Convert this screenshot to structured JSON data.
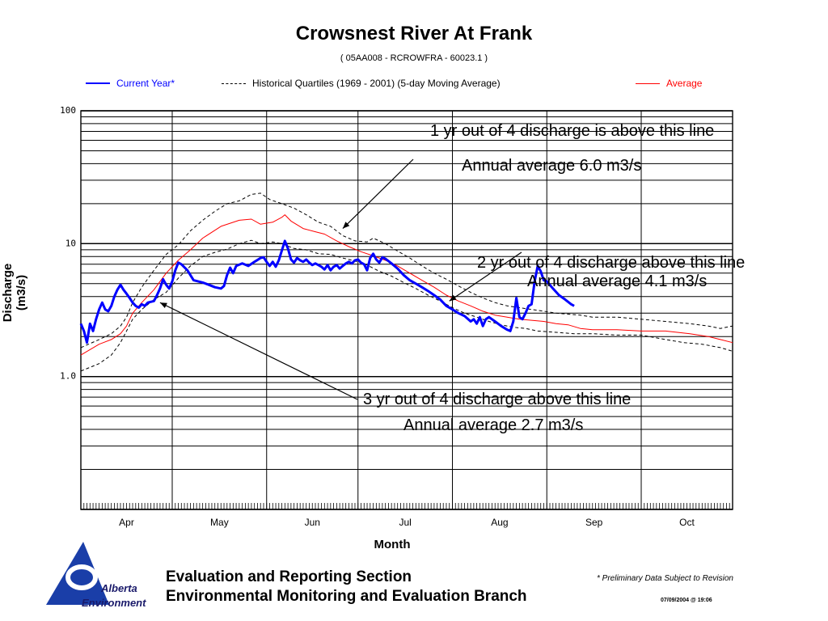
{
  "chart_data": {
    "type": "line",
    "title": "Crowsnest River At Frank",
    "subtitle": "( 05AA008 - RCROWFRA - 60023.1 )",
    "xlabel": "Month",
    "ylabel": "Discharge (m3/s)",
    "y_scale": "log",
    "ylim": [
      0.1,
      100
    ],
    "y_ticks": [
      {
        "value": 100,
        "label": "100"
      },
      {
        "value": 10,
        "label": "10"
      },
      {
        "value": 1,
        "label": "1.0"
      }
    ],
    "x_range_days": [
      0,
      214
    ],
    "x_ticks": [
      "Apr",
      "May",
      "Jun",
      "Jul",
      "Aug",
      "Sep",
      "Oct"
    ],
    "x_tick_positions_days": [
      15,
      45.5,
      76,
      106.5,
      137.5,
      168.5,
      199
    ],
    "month_boundaries_days": [
      30,
      61,
      91,
      122,
      153,
      184
    ],
    "grid": "on",
    "legend": [
      {
        "name": "Current Year*",
        "color": "#0000ff",
        "style": "solid"
      },
      {
        "name": "Historical Quartiles (1969  -  2001)  (5-day Moving Average)",
        "color": "#000000",
        "style": "dashed"
      },
      {
        "name": "Average",
        "color": "#ff0000",
        "style": "solid"
      }
    ],
    "series": [
      {
        "name": "Current Year*",
        "color": "#0000ff",
        "points": [
          [
            0,
            2.5
          ],
          [
            1,
            2.2
          ],
          [
            2,
            1.8
          ],
          [
            3,
            2.5
          ],
          [
            4,
            2.2
          ],
          [
            5,
            2.7
          ],
          [
            6,
            3.2
          ],
          [
            7,
            3.6
          ],
          [
            8,
            3.2
          ],
          [
            9,
            3.1
          ],
          [
            10,
            3.4
          ],
          [
            11,
            4.0
          ],
          [
            12,
            4.5
          ],
          [
            13,
            4.9
          ],
          [
            14,
            4.5
          ],
          [
            15,
            4.2
          ],
          [
            16,
            3.9
          ],
          [
            17,
            3.6
          ],
          [
            18,
            3.4
          ],
          [
            19,
            3.3
          ],
          [
            20,
            3.5
          ],
          [
            21,
            3.4
          ],
          [
            22,
            3.6
          ],
          [
            24,
            3.7
          ],
          [
            25,
            4.1
          ],
          [
            26,
            4.6
          ],
          [
            27,
            5.4
          ],
          [
            28,
            4.9
          ],
          [
            29,
            4.6
          ],
          [
            30,
            5.2
          ],
          [
            31,
            6.3
          ],
          [
            32,
            7.2
          ],
          [
            33,
            7.0
          ],
          [
            35,
            6.3
          ],
          [
            37,
            5.3
          ],
          [
            40,
            5.1
          ],
          [
            42,
            4.9
          ],
          [
            44,
            4.7
          ],
          [
            46,
            4.6
          ],
          [
            47,
            4.8
          ],
          [
            48,
            5.8
          ],
          [
            49,
            6.6
          ],
          [
            50,
            6.0
          ],
          [
            51,
            6.8
          ],
          [
            53,
            7.1
          ],
          [
            55,
            6.8
          ],
          [
            57,
            7.3
          ],
          [
            59,
            7.8
          ],
          [
            60,
            7.9
          ],
          [
            61,
            7.3
          ],
          [
            62,
            6.8
          ],
          [
            63,
            7.3
          ],
          [
            64,
            6.7
          ],
          [
            65,
            7.5
          ],
          [
            66,
            8.9
          ],
          [
            67,
            10.5
          ],
          [
            68,
            9.2
          ],
          [
            69,
            7.6
          ],
          [
            70,
            7.2
          ],
          [
            71,
            7.8
          ],
          [
            72,
            7.5
          ],
          [
            73,
            7.3
          ],
          [
            74,
            7.6
          ],
          [
            75,
            7.2
          ],
          [
            76,
            6.9
          ],
          [
            77,
            7.1
          ],
          [
            78,
            6.9
          ],
          [
            79,
            6.7
          ],
          [
            80,
            6.4
          ],
          [
            81,
            6.9
          ],
          [
            82,
            6.3
          ],
          [
            83,
            6.7
          ],
          [
            84,
            6.9
          ],
          [
            85,
            6.5
          ],
          [
            86,
            6.8
          ],
          [
            87,
            7.1
          ],
          [
            88,
            7.3
          ],
          [
            89,
            7.1
          ],
          [
            90,
            7.5
          ],
          [
            91,
            7.6
          ],
          [
            92,
            7.2
          ],
          [
            93,
            7.0
          ],
          [
            94,
            6.3
          ],
          [
            95,
            7.8
          ],
          [
            96,
            8.4
          ],
          [
            97,
            7.6
          ],
          [
            98,
            7.2
          ],
          [
            99,
            7.9
          ],
          [
            100,
            7.7
          ],
          [
            101,
            7.4
          ],
          [
            102,
            7.1
          ],
          [
            104,
            6.5
          ],
          [
            106,
            5.8
          ],
          [
            108,
            5.3
          ],
          [
            110,
            5.0
          ],
          [
            112,
            4.7
          ],
          [
            114,
            4.4
          ],
          [
            116,
            4.1
          ],
          [
            118,
            3.8
          ],
          [
            120,
            3.4
          ],
          [
            122,
            3.2
          ],
          [
            124,
            3.0
          ],
          [
            126,
            2.85
          ],
          [
            128,
            2.6
          ],
          [
            129,
            2.7
          ],
          [
            130,
            2.5
          ],
          [
            131,
            2.8
          ],
          [
            132,
            2.4
          ],
          [
            133,
            2.7
          ],
          [
            134,
            2.8
          ],
          [
            136,
            2.6
          ],
          [
            138,
            2.4
          ],
          [
            140,
            2.25
          ],
          [
            141,
            2.2
          ],
          [
            142,
            2.6
          ],
          [
            143,
            3.9
          ],
          [
            144,
            2.8
          ],
          [
            145,
            2.7
          ],
          [
            146,
            3.0
          ],
          [
            147,
            3.4
          ],
          [
            148,
            3.5
          ],
          [
            149,
            5.2
          ],
          [
            150,
            6.8
          ],
          [
            151,
            6.2
          ],
          [
            152,
            5.3
          ],
          [
            153,
            5.2
          ],
          [
            155,
            4.6
          ],
          [
            157,
            4.1
          ],
          [
            159,
            3.8
          ],
          [
            161,
            3.5
          ],
          [
            162,
            3.4
          ]
        ]
      },
      {
        "name": "Average",
        "color": "#ff0000",
        "points": [
          [
            0,
            1.45
          ],
          [
            6,
            1.75
          ],
          [
            10,
            1.9
          ],
          [
            13,
            2.1
          ],
          [
            15,
            2.4
          ],
          [
            17,
            3.0
          ],
          [
            20,
            3.6
          ],
          [
            24,
            4.5
          ],
          [
            28,
            6.0
          ],
          [
            32,
            7.5
          ],
          [
            36,
            9.0
          ],
          [
            40,
            11.0
          ],
          [
            46,
            13.5
          ],
          [
            52,
            15.0
          ],
          [
            56,
            15.3
          ],
          [
            59,
            14.0
          ],
          [
            63,
            14.5
          ],
          [
            66,
            15.8
          ],
          [
            67,
            16.5
          ],
          [
            69,
            14.8
          ],
          [
            73,
            13.0
          ],
          [
            77,
            12.3
          ],
          [
            80,
            11.8
          ],
          [
            84,
            10.5
          ],
          [
            88,
            9.5
          ],
          [
            92,
            8.7
          ],
          [
            96,
            8.1
          ],
          [
            100,
            7.5
          ],
          [
            104,
            6.8
          ],
          [
            108,
            6.0
          ],
          [
            112,
            5.3
          ],
          [
            116,
            4.7
          ],
          [
            120,
            4.1
          ],
          [
            124,
            3.7
          ],
          [
            128,
            3.4
          ],
          [
            132,
            3.1
          ],
          [
            136,
            2.9
          ],
          [
            140,
            2.8
          ],
          [
            144,
            2.7
          ],
          [
            148,
            2.65
          ],
          [
            152,
            2.6
          ],
          [
            156,
            2.5
          ],
          [
            160,
            2.45
          ],
          [
            164,
            2.3
          ],
          [
            168,
            2.25
          ],
          [
            176,
            2.25
          ],
          [
            184,
            2.2
          ],
          [
            192,
            2.2
          ],
          [
            200,
            2.1
          ],
          [
            206,
            2.0
          ],
          [
            210,
            1.9
          ],
          [
            214,
            1.8
          ]
        ]
      },
      {
        "name": "Historical Quartiles (1969  -  2001)  (5-day Moving Average)",
        "label": "upper",
        "color": "#000000",
        "dashed": true,
        "points": [
          [
            0,
            1.65
          ],
          [
            6,
            1.9
          ],
          [
            10,
            2.1
          ],
          [
            13,
            2.4
          ],
          [
            15,
            2.8
          ],
          [
            17,
            3.6
          ],
          [
            20,
            4.7
          ],
          [
            24,
            6.3
          ],
          [
            28,
            8.3
          ],
          [
            32,
            9.8
          ],
          [
            36,
            12.5
          ],
          [
            40,
            15.0
          ],
          [
            44,
            17.5
          ],
          [
            48,
            20.0
          ],
          [
            52,
            21.0
          ],
          [
            56,
            23.5
          ],
          [
            59,
            24.0
          ],
          [
            62,
            21.5
          ],
          [
            66,
            20.0
          ],
          [
            70,
            18.5
          ],
          [
            74,
            16.5
          ],
          [
            78,
            14.5
          ],
          [
            82,
            13.5
          ],
          [
            86,
            11.5
          ],
          [
            90,
            10.5
          ],
          [
            94,
            10.3
          ],
          [
            96,
            11.0
          ],
          [
            100,
            10.0
          ],
          [
            104,
            8.8
          ],
          [
            108,
            7.8
          ],
          [
            112,
            6.8
          ],
          [
            116,
            6.0
          ],
          [
            120,
            5.4
          ],
          [
            124,
            4.8
          ],
          [
            128,
            4.3
          ],
          [
            132,
            3.9
          ],
          [
            136,
            3.6
          ],
          [
            140,
            3.4
          ],
          [
            144,
            3.3
          ],
          [
            148,
            3.2
          ],
          [
            152,
            3.1
          ],
          [
            156,
            3.0
          ],
          [
            160,
            2.95
          ],
          [
            164,
            2.9
          ],
          [
            168,
            2.8
          ],
          [
            176,
            2.8
          ],
          [
            184,
            2.7
          ],
          [
            192,
            2.6
          ],
          [
            200,
            2.5
          ],
          [
            206,
            2.4
          ],
          [
            210,
            2.3
          ],
          [
            214,
            2.4
          ]
        ]
      },
      {
        "name": "Historical Quartiles (1969  -  2001)  (5-day Moving Average)",
        "label": "lower",
        "color": "#000000",
        "dashed": true,
        "points": [
          [
            0,
            1.1
          ],
          [
            6,
            1.25
          ],
          [
            10,
            1.45
          ],
          [
            13,
            1.8
          ],
          [
            15,
            2.2
          ],
          [
            17,
            2.7
          ],
          [
            20,
            3.2
          ],
          [
            24,
            3.8
          ],
          [
            28,
            4.3
          ],
          [
            32,
            5.5
          ],
          [
            36,
            6.8
          ],
          [
            40,
            8.0
          ],
          [
            44,
            8.6
          ],
          [
            48,
            9.1
          ],
          [
            52,
            10.0
          ],
          [
            56,
            10.6
          ],
          [
            59,
            10.0
          ],
          [
            63,
            10.3
          ],
          [
            66,
            10.0
          ],
          [
            70,
            9.2
          ],
          [
            74,
            9.0
          ],
          [
            78,
            8.4
          ],
          [
            82,
            8.3
          ],
          [
            86,
            7.8
          ],
          [
            90,
            7.4
          ],
          [
            94,
            6.9
          ],
          [
            98,
            6.2
          ],
          [
            102,
            5.7
          ],
          [
            106,
            5.1
          ],
          [
            110,
            4.6
          ],
          [
            114,
            4.1
          ],
          [
            118,
            3.7
          ],
          [
            122,
            3.3
          ],
          [
            126,
            3.0
          ],
          [
            130,
            2.8
          ],
          [
            134,
            2.6
          ],
          [
            138,
            2.45
          ],
          [
            142,
            2.35
          ],
          [
            146,
            2.3
          ],
          [
            150,
            2.2
          ],
          [
            156,
            2.15
          ],
          [
            162,
            2.1
          ],
          [
            168,
            2.1
          ],
          [
            176,
            2.05
          ],
          [
            184,
            2.05
          ],
          [
            192,
            1.9
          ],
          [
            198,
            1.8
          ],
          [
            204,
            1.75
          ],
          [
            210,
            1.65
          ],
          [
            214,
            1.55
          ]
        ]
      }
    ],
    "annotations": [
      {
        "id": "upper",
        "lines": [
          "1 yr out of 4 discharge is above this line",
          "Annual average 6.0 m3/s"
        ],
        "target": [
          86,
          13.0
        ]
      },
      {
        "id": "middle",
        "lines": [
          "2 yr out of 4 discharge above this line",
          "Annual average 4.1 m3/s"
        ],
        "target": [
          121,
          3.7
        ]
      },
      {
        "id": "lower",
        "lines": [
          "3 yr out of 4 discharge above this line",
          "Annual average 2.7 m3/s"
        ],
        "target": [
          26,
          3.6
        ]
      }
    ]
  },
  "footer": {
    "section": "Evaluation and Reporting Section",
    "branch": "Environmental Monitoring and Evaluation Branch",
    "note": "* Preliminary Data Subject to Revision",
    "timestamp": "07/09/2004 @ 19:06",
    "logo_text": [
      "Alberta",
      "Environment"
    ]
  }
}
